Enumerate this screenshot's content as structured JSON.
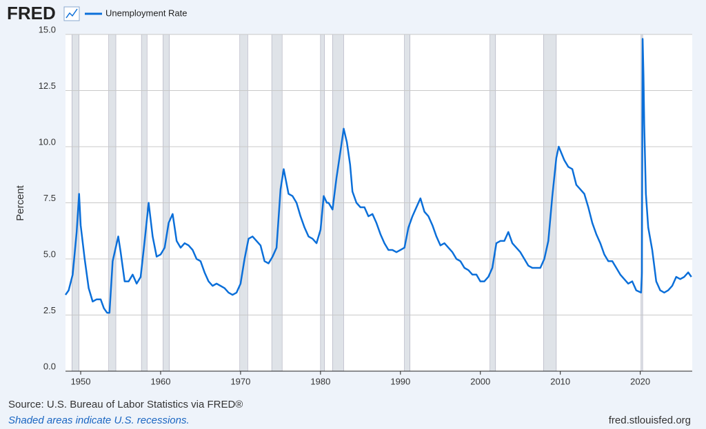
{
  "logo": "FRED",
  "chart_data": {
    "type": "line",
    "y_label": "Percent",
    "source": "Source: U.S. Bureau of Labor Statistics via FRED®",
    "note": "Shaded areas indicate U.S. recessions.",
    "site": "fred.stlouisfed.org",
    "xlim": [
      1948.1,
      2026.5
    ],
    "xticks": [
      1950,
      1960,
      1970,
      1980,
      1990,
      2000,
      2010,
      2020
    ],
    "ylim": [
      0,
      15
    ],
    "yticks": [
      {
        "value": 0,
        "label": "0.0"
      },
      {
        "value": 2.5,
        "label": "2.5"
      },
      {
        "value": 5,
        "label": "5.0"
      },
      {
        "value": 7.5,
        "label": "7.5"
      },
      {
        "value": 10,
        "label": "10.0"
      },
      {
        "value": 12.5,
        "label": "12.5"
      },
      {
        "value": 15,
        "label": "15.0"
      }
    ],
    "grid": true,
    "recessions": [
      [
        1948.9,
        1949.8
      ],
      [
        1953.5,
        1954.4
      ],
      [
        1957.6,
        1958.3
      ],
      [
        1960.3,
        1961.1
      ],
      [
        1969.9,
        1970.9
      ],
      [
        1973.9,
        1975.2
      ],
      [
        1980.0,
        1980.5
      ],
      [
        1981.5,
        1982.9
      ],
      [
        1990.5,
        1991.2
      ],
      [
        2001.2,
        2001.9
      ],
      [
        2007.9,
        2009.5
      ],
      [
        2020.1,
        2020.3
      ]
    ],
    "x": [
      1948.1,
      1948.5,
      1949.0,
      1949.5,
      1949.8,
      1950.0,
      1950.5,
      1951.0,
      1951.5,
      1952.0,
      1952.5,
      1952.9,
      1953.3,
      1953.6,
      1954.0,
      1954.7,
      1955.0,
      1955.5,
      1956.0,
      1956.5,
      1957.0,
      1957.5,
      1958.0,
      1958.5,
      1959.0,
      1959.5,
      1960.0,
      1960.5,
      1961.0,
      1961.5,
      1962.0,
      1962.5,
      1963.0,
      1963.5,
      1964.0,
      1964.5,
      1965.0,
      1965.5,
      1966.0,
      1966.5,
      1967.0,
      1967.5,
      1968.0,
      1968.5,
      1969.0,
      1969.5,
      1970.0,
      1970.5,
      1971.0,
      1971.5,
      1972.0,
      1972.5,
      1973.0,
      1973.5,
      1974.0,
      1974.5,
      1975.0,
      1975.4,
      1976.0,
      1976.5,
      1977.0,
      1977.5,
      1978.0,
      1978.5,
      1979.0,
      1979.5,
      1980.0,
      1980.4,
      1980.8,
      1981.0,
      1981.5,
      1982.0,
      1982.5,
      1982.9,
      1983.3,
      1983.7,
      1984.0,
      1984.5,
      1985.0,
      1985.5,
      1986.0,
      1986.5,
      1987.0,
      1987.5,
      1988.0,
      1988.5,
      1989.0,
      1989.5,
      1990.0,
      1990.5,
      1991.0,
      1991.5,
      1992.0,
      1992.5,
      1993.0,
      1993.5,
      1994.0,
      1994.5,
      1995.0,
      1995.5,
      1996.0,
      1996.5,
      1997.0,
      1997.5,
      1998.0,
      1998.5,
      1999.0,
      1999.5,
      2000.0,
      2000.5,
      2001.0,
      2001.5,
      2002.0,
      2002.5,
      2003.0,
      2003.5,
      2004.0,
      2004.5,
      2005.0,
      2005.5,
      2006.0,
      2006.5,
      2007.0,
      2007.5,
      2008.0,
      2008.5,
      2009.0,
      2009.5,
      2009.8,
      2010.5,
      2011.0,
      2011.5,
      2012.0,
      2012.5,
      2013.0,
      2013.5,
      2014.0,
      2014.5,
      2015.0,
      2015.5,
      2016.0,
      2016.5,
      2017.0,
      2017.5,
      2018.0,
      2018.5,
      2019.0,
      2019.5,
      2020.1,
      2020.2,
      2020.3,
      2020.4,
      2020.5,
      2020.7,
      2021.0,
      2021.5,
      2022.0,
      2022.5,
      2023.0,
      2023.5,
      2024.0,
      2024.5,
      2025.0,
      2025.5,
      2026.0,
      2026.4
    ],
    "series": [
      {
        "name": "Unemployment Rate",
        "color": "#0b6fd9",
        "values": [
          3.4,
          3.6,
          4.3,
          6.2,
          7.9,
          6.5,
          5.0,
          3.7,
          3.1,
          3.2,
          3.2,
          2.8,
          2.6,
          2.6,
          4.9,
          6.0,
          5.3,
          4.0,
          4.0,
          4.3,
          3.9,
          4.2,
          5.8,
          7.5,
          6.0,
          5.1,
          5.2,
          5.5,
          6.6,
          7.0,
          5.8,
          5.5,
          5.7,
          5.6,
          5.4,
          5.0,
          4.9,
          4.4,
          4.0,
          3.8,
          3.9,
          3.8,
          3.7,
          3.5,
          3.4,
          3.5,
          3.9,
          5.0,
          5.9,
          6.0,
          5.8,
          5.6,
          4.9,
          4.8,
          5.1,
          5.5,
          8.1,
          9.0,
          7.9,
          7.8,
          7.5,
          6.9,
          6.4,
          6.0,
          5.9,
          5.7,
          6.3,
          7.8,
          7.5,
          7.5,
          7.2,
          8.6,
          9.8,
          10.8,
          10.2,
          9.2,
          8.0,
          7.5,
          7.3,
          7.3,
          6.9,
          7.0,
          6.6,
          6.1,
          5.7,
          5.4,
          5.4,
          5.3,
          5.4,
          5.5,
          6.4,
          6.9,
          7.3,
          7.7,
          7.1,
          6.9,
          6.5,
          6.0,
          5.6,
          5.7,
          5.5,
          5.3,
          5.0,
          4.9,
          4.6,
          4.5,
          4.3,
          4.3,
          4.0,
          4.0,
          4.2,
          4.6,
          5.7,
          5.8,
          5.8,
          6.2,
          5.7,
          5.5,
          5.3,
          5.0,
          4.7,
          4.6,
          4.6,
          4.6,
          5.0,
          5.8,
          7.8,
          9.5,
          10.0,
          9.4,
          9.1,
          9.0,
          8.3,
          8.1,
          7.9,
          7.3,
          6.6,
          6.1,
          5.7,
          5.2,
          4.9,
          4.9,
          4.6,
          4.3,
          4.1,
          3.9,
          4.0,
          3.6,
          3.5,
          4.4,
          14.8,
          13.2,
          11.0,
          7.9,
          6.4,
          5.4,
          4.0,
          3.6,
          3.5,
          3.6,
          3.8,
          4.2,
          4.1,
          4.2,
          4.4,
          4.2
        ]
      }
    ]
  }
}
